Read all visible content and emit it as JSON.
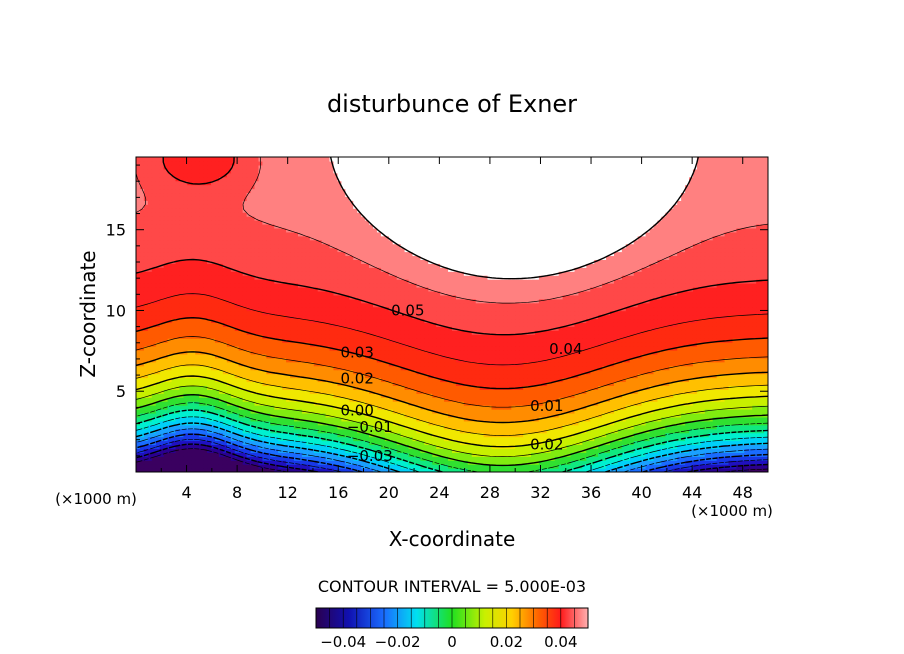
{
  "chart_data": {
    "type": "contour",
    "title": "disturbunce of Exner",
    "xlabel": "X-coordinate",
    "ylabel": "Z-coordinate",
    "x_unit": "(×1000 m)",
    "xlim": [
      0,
      50
    ],
    "ylim": [
      0,
      19.5
    ],
    "x_ticks": [
      4,
      8,
      12,
      16,
      20,
      24,
      28,
      32,
      36,
      40,
      44,
      48
    ],
    "y_ticks": [
      5,
      10,
      15
    ],
    "contour_interval_text": "CONTOUR INTERVAL = 5.000E-03",
    "colorbar": {
      "range": [
        -0.05,
        0.05
      ],
      "ticks": [
        -0.04,
        -0.02,
        0,
        0.02,
        0.04
      ],
      "tick_labels": [
        "−0.04",
        "−0.02",
        "0",
        "0.02",
        "0.04"
      ]
    },
    "contour_labels": [
      {
        "text": "0.05",
        "x": 21.5,
        "z": 10.0
      },
      {
        "text": "0.04",
        "x": 34.0,
        "z": 7.6
      },
      {
        "text": "0.03",
        "x": 17.5,
        "z": 7.4
      },
      {
        "text": "0.02",
        "x": 17.5,
        "z": 5.8
      },
      {
        "text": "0.00",
        "x": 17.5,
        "z": 3.8
      },
      {
        "text": "0.01",
        "x": 32.5,
        "z": 4.1
      },
      {
        "text": "−0.01",
        "x": 18.5,
        "z": 2.8
      },
      {
        "text": "0.02",
        "x": 32.5,
        "z": 1.7
      },
      {
        "text": "−0.03",
        "x": 18.5,
        "z": 1.0
      }
    ],
    "field_description_values": {
      "min_level": -0.045,
      "max_level": 0.05,
      "max_region_note": "values above 0.05 shown unfilled (white)"
    }
  }
}
